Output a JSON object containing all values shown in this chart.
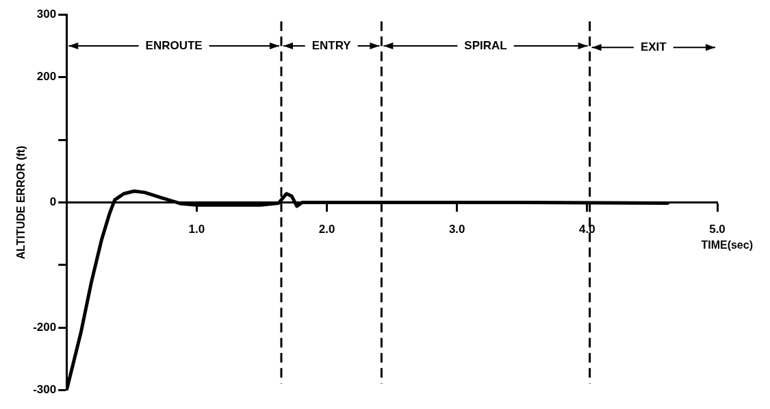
{
  "chart_data": {
    "type": "line",
    "xlabel": "TIME(sec)",
    "ylabel": "ALTITUDE ERROR (ft)",
    "x": [
      0,
      0.11,
      0.19,
      0.27,
      0.33,
      0.37,
      0.44,
      0.52,
      0.6,
      0.72,
      0.88,
      1.0,
      1.49,
      1.63,
      1.69,
      1.73,
      1.77,
      1.81,
      2.5,
      3.5,
      4.62
    ],
    "series": [
      {
        "color": "#000000",
        "values": [
          -300,
          -208,
          -128,
          -59,
          -18,
          4,
          14,
          18,
          16,
          8,
          -2,
          -4,
          -4,
          -1,
          14,
          10,
          -6,
          0,
          0,
          0,
          -1
        ]
      }
    ],
    "xlim": [
      0,
      5
    ],
    "xticks": [
      {
        "value": 1,
        "label": "1.0"
      },
      {
        "value": 2,
        "label": "2.0"
      },
      {
        "value": 3,
        "label": "3.0"
      },
      {
        "value": 4,
        "label": "4.0"
      },
      {
        "value": 5,
        "label": "5.0"
      }
    ],
    "ylim": [
      -300,
      300
    ],
    "yticks": [
      -300,
      -200,
      {
        "value": -100,
        "label": null
      },
      0,
      {
        "value": 100,
        "label": null
      },
      200,
      300
    ],
    "ref_lines": [
      {
        "axis": "x",
        "value": 1.65,
        "line_style": "dashed"
      },
      {
        "axis": "x",
        "value": 2.42,
        "line_style": "dashed"
      },
      {
        "axis": "x",
        "value": 4.02,
        "line_style": "dashed"
      }
    ],
    "annotations": [
      {
        "text": "ENROUTE",
        "x": 1.65,
        "y": 250
      },
      {
        "text": "ENTRY",
        "x": 2.42,
        "y": 250
      },
      {
        "text": "SPIRAL",
        "x": 4.02,
        "y": 250
      },
      "EXIT"
    ],
    "grid": false,
    "legend": false,
    "marker": "none",
    "line_style": "solid"
  }
}
